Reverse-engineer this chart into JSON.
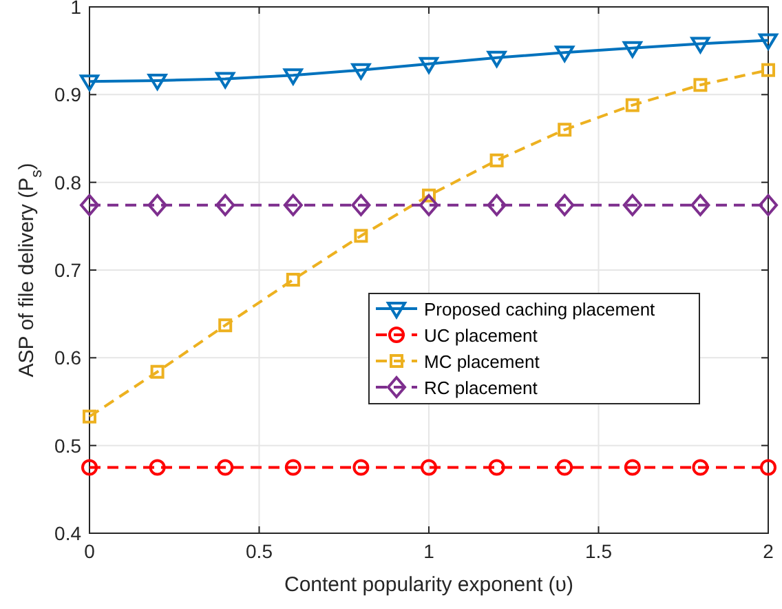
{
  "chart_data": {
    "type": "line",
    "xlabel": "Content popularity exponent (υ)",
    "ylabel": "ASP of file delivery (P$_{s}$)",
    "x": [
      0,
      0.2,
      0.4,
      0.6,
      0.8,
      1,
      1.2,
      1.4,
      1.6,
      1.8,
      2
    ],
    "series": [
      {
        "name": "Proposed caching placement",
        "color": "#0072bd",
        "marker": "triangle",
        "line_style": "solid",
        "values": [
          0.915,
          0.916,
          0.918,
          0.922,
          0.928,
          0.935,
          0.942,
          0.948,
          0.953,
          0.958,
          0.962
        ]
      },
      {
        "name": "UC placement",
        "color": "#ff0000",
        "marker": "circle",
        "line_style": "dashed",
        "values": [
          0.475,
          0.475,
          0.475,
          0.475,
          0.475,
          0.475,
          0.475,
          0.475,
          0.475,
          0.475,
          0.475
        ]
      },
      {
        "name": "MC placement",
        "color": "#edb120",
        "marker": "square",
        "line_style": "dashed",
        "values": [
          0.533,
          0.584,
          0.637,
          0.689,
          0.739,
          0.785,
          0.825,
          0.86,
          0.888,
          0.911,
          0.928
        ]
      },
      {
        "name": "RC placement",
        "color": "#7e2f8e",
        "marker": "diamond",
        "line_style": "dashed",
        "values": [
          0.774,
          0.774,
          0.774,
          0.774,
          0.774,
          0.774,
          0.774,
          0.774,
          0.774,
          0.774,
          0.774
        ]
      }
    ],
    "xlim": [
      0,
      2
    ],
    "xticks": [
      0,
      0.5,
      1,
      1.5,
      2
    ],
    "ylim": [
      0.4,
      1
    ],
    "yticks": [
      0.4,
      0.5,
      0.6,
      0.7,
      0.8,
      0.9,
      1
    ],
    "grid": true,
    "legend": "right"
  }
}
